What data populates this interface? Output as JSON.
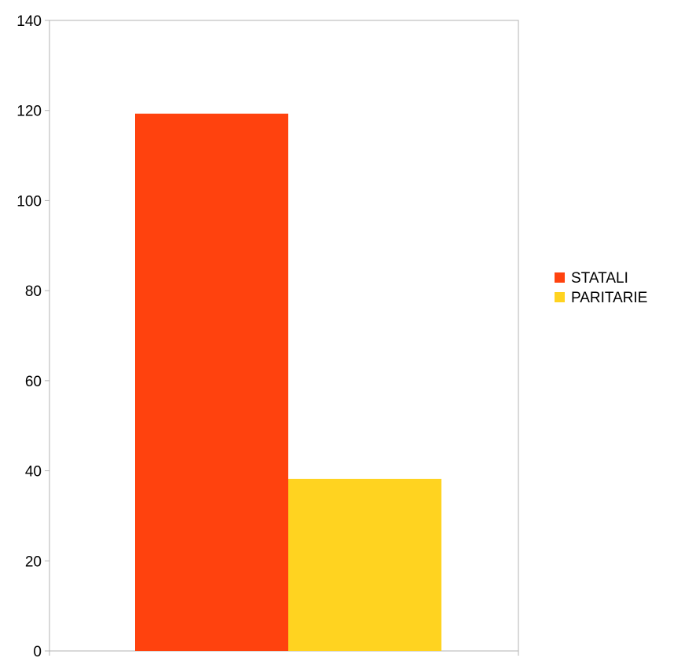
{
  "chart_data": {
    "type": "bar",
    "categories": [
      ""
    ],
    "series": [
      {
        "name": "STATALI",
        "values": [
          119.3
        ],
        "color": "#ff420e"
      },
      {
        "name": "PARITARIE",
        "values": [
          38.2
        ],
        "color": "#ffd320"
      }
    ],
    "ylim": [
      0,
      140
    ],
    "yticks": [
      0,
      20,
      40,
      60,
      80,
      100,
      120,
      140
    ],
    "title": "",
    "xlabel": "",
    "ylabel": "",
    "grid": false,
    "legend_position": "right",
    "axis_color": "#b3b3b3"
  }
}
